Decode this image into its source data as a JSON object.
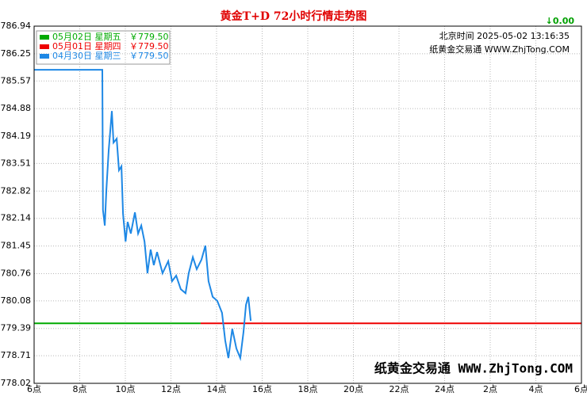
{
  "chart_data": {
    "type": "line",
    "title": "黄金T+D 72小时行情走势图",
    "change": "↓0.00",
    "timestamp": "北京时间 2025-05-02 13:16:35",
    "source": "纸黄金交易通 WWW.ZhjTong.COM",
    "watermark": "纸黄金交易通 WWW.ZhjTong.COM",
    "xlim": [
      6,
      30
    ],
    "xticks": [
      {
        "value": 6,
        "label": "6点"
      },
      {
        "value": 8,
        "label": "8点"
      },
      {
        "value": 10,
        "label": "10点"
      },
      {
        "value": 12,
        "label": "12点"
      },
      {
        "value": 14,
        "label": "14点"
      },
      {
        "value": 16,
        "label": "16点"
      },
      {
        "value": 18,
        "label": "18点"
      },
      {
        "value": 20,
        "label": "20点"
      },
      {
        "value": 22,
        "label": "22点"
      },
      {
        "value": 24,
        "label": "24点"
      },
      {
        "value": 26,
        "label": "2点"
      },
      {
        "value": 28,
        "label": "4点"
      },
      {
        "value": 30,
        "label": "6点"
      }
    ],
    "ylim": [
      778.02,
      786.94
    ],
    "yticks": [
      778.02,
      778.71,
      779.39,
      780.08,
      780.76,
      781.45,
      782.14,
      782.82,
      783.51,
      784.19,
      784.88,
      785.57,
      786.25,
      786.94
    ],
    "grid": true,
    "series": [
      {
        "name": "05月02日 星期五",
        "price": "￥779.50",
        "color": "#00aa00",
        "x": [
          6,
          13.3
        ],
        "values": [
          779.52,
          779.52
        ]
      },
      {
        "name": "05月01日 星期四",
        "price": "￥779.50",
        "color": "#ee0000",
        "x": [
          13.3,
          30
        ],
        "values": [
          779.52,
          779.52
        ]
      },
      {
        "name": "04月30日 星期三",
        "price": "￥779.50",
        "color": "#1e88e5",
        "x": [
          6.0,
          8.99,
          9.02,
          9.1,
          9.17,
          9.27,
          9.41,
          9.48,
          9.62,
          9.72,
          9.83,
          9.9,
          10.01,
          10.1,
          10.24,
          10.42,
          10.56,
          10.7,
          10.84,
          10.97,
          11.11,
          11.25,
          11.39,
          11.63,
          11.88,
          12.05,
          12.23,
          12.43,
          12.64,
          12.78,
          12.96,
          13.13,
          13.34,
          13.51,
          13.65,
          13.83,
          14.03,
          14.24,
          14.38,
          14.52,
          14.69,
          14.87,
          15.04,
          15.18,
          15.29,
          15.39,
          15.5
        ],
        "values": [
          785.85,
          785.85,
          782.35,
          781.96,
          782.85,
          783.83,
          784.82,
          784.03,
          784.13,
          783.34,
          783.44,
          782.25,
          781.56,
          782.05,
          781.76,
          782.29,
          781.76,
          781.96,
          781.56,
          780.77,
          781.36,
          780.97,
          781.3,
          780.77,
          781.07,
          780.57,
          780.71,
          780.37,
          780.27,
          780.77,
          781.17,
          780.87,
          781.11,
          781.46,
          780.57,
          780.18,
          780.08,
          779.78,
          779.09,
          778.65,
          779.38,
          778.89,
          778.65,
          779.29,
          779.98,
          780.18,
          779.58
        ]
      }
    ]
  }
}
